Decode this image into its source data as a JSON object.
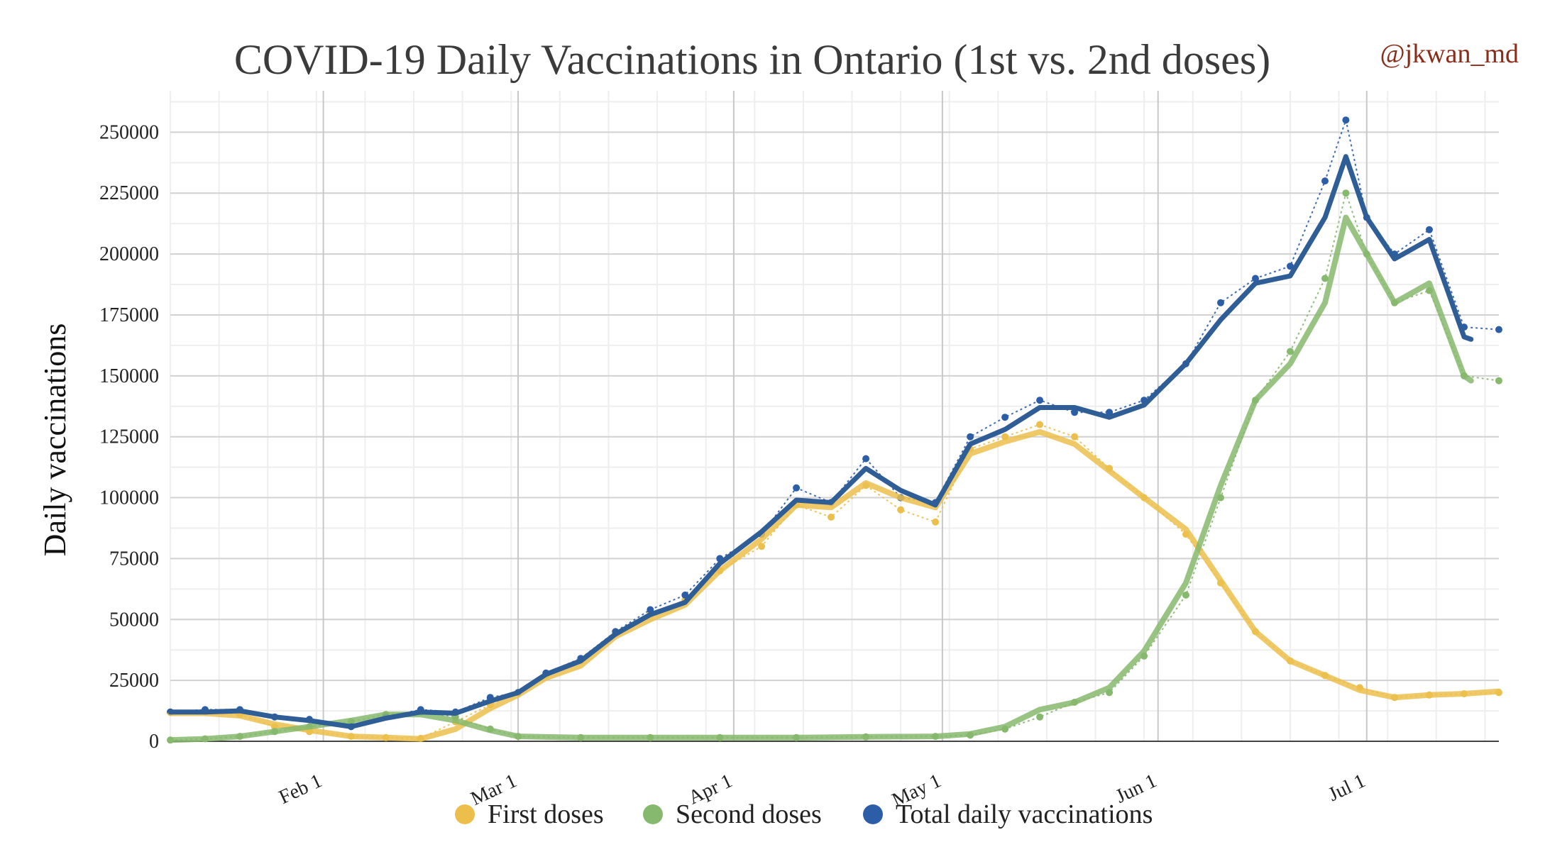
{
  "chart_data": {
    "type": "line",
    "title": "COVID-19 Daily Vaccinations in Ontario (1st vs. 2nd doses)",
    "credit": "@jkwan_md",
    "ylabel": "Daily vaccinations",
    "xlabel": "",
    "ylim": [
      0,
      267000
    ],
    "x_tick_labels": [
      "Feb 1",
      "Mar 1",
      "Apr 1",
      "May 1",
      "Jun 1",
      "Jul 1"
    ],
    "y_tick_labels": [
      "0",
      "25000",
      "50000",
      "75000",
      "100000",
      "125000",
      "150000",
      "175000",
      "200000",
      "225000",
      "250000"
    ],
    "grid": true,
    "legend_position": "bottom",
    "x_start": "2021-01-10",
    "x_end": "2021-07-20",
    "series": [
      {
        "name": "First doses",
        "color": "#ecbf4c",
        "daily": [
          [
            "2021-01-10",
            12000
          ],
          [
            "2021-01-15",
            12000
          ],
          [
            "2021-01-20",
            11000
          ],
          [
            "2021-01-25",
            6000
          ],
          [
            "2021-01-30",
            4000
          ],
          [
            "2021-02-05",
            2000
          ],
          [
            "2021-02-10",
            1500
          ],
          [
            "2021-02-15",
            1200
          ],
          [
            "2021-02-20",
            8000
          ],
          [
            "2021-02-25",
            15000
          ],
          [
            "2021-03-01",
            20000
          ],
          [
            "2021-03-05",
            27000
          ],
          [
            "2021-03-10",
            33000
          ],
          [
            "2021-03-15",
            45000
          ],
          [
            "2021-03-20",
            52000
          ],
          [
            "2021-03-25",
            58000
          ],
          [
            "2021-03-30",
            70000
          ],
          [
            "2021-04-05",
            80000
          ],
          [
            "2021-04-10",
            97000
          ],
          [
            "2021-04-15",
            92000
          ],
          [
            "2021-04-20",
            105000
          ],
          [
            "2021-04-25",
            95000
          ],
          [
            "2021-04-30",
            90000
          ],
          [
            "2021-05-05",
            120000
          ],
          [
            "2021-05-10",
            125000
          ],
          [
            "2021-05-15",
            130000
          ],
          [
            "2021-05-20",
            125000
          ],
          [
            "2021-05-25",
            112000
          ],
          [
            "2021-05-30",
            100000
          ],
          [
            "2021-06-05",
            85000
          ],
          [
            "2021-06-10",
            65000
          ],
          [
            "2021-06-15",
            45000
          ],
          [
            "2021-06-20",
            33000
          ],
          [
            "2021-06-25",
            27000
          ],
          [
            "2021-06-30",
            22000
          ],
          [
            "2021-07-05",
            18000
          ],
          [
            "2021-07-10",
            19000
          ],
          [
            "2021-07-15",
            19500
          ],
          [
            "2021-07-20",
            20000
          ]
        ],
        "smoothed": [
          [
            "2021-01-10",
            11500
          ],
          [
            "2021-01-15",
            11500
          ],
          [
            "2021-01-20",
            10500
          ],
          [
            "2021-01-25",
            7000
          ],
          [
            "2021-01-30",
            4500
          ],
          [
            "2021-02-05",
            2000
          ],
          [
            "2021-02-10",
            1500
          ],
          [
            "2021-02-15",
            1000
          ],
          [
            "2021-02-20",
            5000
          ],
          [
            "2021-02-25",
            13500
          ],
          [
            "2021-03-01",
            19000
          ],
          [
            "2021-03-05",
            26000
          ],
          [
            "2021-03-10",
            31000
          ],
          [
            "2021-03-15",
            43000
          ],
          [
            "2021-03-20",
            50000
          ],
          [
            "2021-03-25",
            56000
          ],
          [
            "2021-03-30",
            70000
          ],
          [
            "2021-04-05",
            83000
          ],
          [
            "2021-04-10",
            97000
          ],
          [
            "2021-04-15",
            96000
          ],
          [
            "2021-04-20",
            106000
          ],
          [
            "2021-04-25",
            100000
          ],
          [
            "2021-04-30",
            96000
          ],
          [
            "2021-05-05",
            118000
          ],
          [
            "2021-05-10",
            123000
          ],
          [
            "2021-05-15",
            127000
          ],
          [
            "2021-05-20",
            122000
          ],
          [
            "2021-05-25",
            111000
          ],
          [
            "2021-05-30",
            100000
          ],
          [
            "2021-06-05",
            87000
          ],
          [
            "2021-06-10",
            66000
          ],
          [
            "2021-06-15",
            45000
          ],
          [
            "2021-06-20",
            33000
          ],
          [
            "2021-06-25",
            27000
          ],
          [
            "2021-06-30",
            21000
          ],
          [
            "2021-07-05",
            18000
          ],
          [
            "2021-07-10",
            19000
          ],
          [
            "2021-07-15",
            19500
          ],
          [
            "2021-07-20",
            20500
          ]
        ]
      },
      {
        "name": "Second doses",
        "color": "#86b86d",
        "daily": [
          [
            "2021-01-10",
            500
          ],
          [
            "2021-01-15",
            1000
          ],
          [
            "2021-01-20",
            2000
          ],
          [
            "2021-01-25",
            4000
          ],
          [
            "2021-01-30",
            6000
          ],
          [
            "2021-02-05",
            8000
          ],
          [
            "2021-02-10",
            11000
          ],
          [
            "2021-02-15",
            12000
          ],
          [
            "2021-02-20",
            10000
          ],
          [
            "2021-02-25",
            5000
          ],
          [
            "2021-03-01",
            2000
          ],
          [
            "2021-03-10",
            1500
          ],
          [
            "2021-03-20",
            1500
          ],
          [
            "2021-03-30",
            1500
          ],
          [
            "2021-04-10",
            1500
          ],
          [
            "2021-04-20",
            1800
          ],
          [
            "2021-04-30",
            2000
          ],
          [
            "2021-05-05",
            2500
          ],
          [
            "2021-05-10",
            5000
          ],
          [
            "2021-05-15",
            10000
          ],
          [
            "2021-05-20",
            16000
          ],
          [
            "2021-05-25",
            20000
          ],
          [
            "2021-05-30",
            35000
          ],
          [
            "2021-06-05",
            60000
          ],
          [
            "2021-06-10",
            100000
          ],
          [
            "2021-06-15",
            140000
          ],
          [
            "2021-06-20",
            160000
          ],
          [
            "2021-06-25",
            190000
          ],
          [
            "2021-06-28",
            225000
          ],
          [
            "2021-07-01",
            200000
          ],
          [
            "2021-07-05",
            180000
          ],
          [
            "2021-07-10",
            185000
          ],
          [
            "2021-07-15",
            150000
          ],
          [
            "2021-07-20",
            148000
          ]
        ],
        "smoothed": [
          [
            "2021-01-10",
            500
          ],
          [
            "2021-01-15",
            1000
          ],
          [
            "2021-01-20",
            2000
          ],
          [
            "2021-01-25",
            4000
          ],
          [
            "2021-01-30",
            6000
          ],
          [
            "2021-02-05",
            8500
          ],
          [
            "2021-02-10",
            11000
          ],
          [
            "2021-02-15",
            11000
          ],
          [
            "2021-02-20",
            8500
          ],
          [
            "2021-02-25",
            4500
          ],
          [
            "2021-03-01",
            2000
          ],
          [
            "2021-03-10",
            1500
          ],
          [
            "2021-03-20",
            1500
          ],
          [
            "2021-03-30",
            1500
          ],
          [
            "2021-04-10",
            1500
          ],
          [
            "2021-04-20",
            1800
          ],
          [
            "2021-04-30",
            2000
          ],
          [
            "2021-05-05",
            3000
          ],
          [
            "2021-05-10",
            6000
          ],
          [
            "2021-05-15",
            13000
          ],
          [
            "2021-05-20",
            16000
          ],
          [
            "2021-05-25",
            22000
          ],
          [
            "2021-05-30",
            37000
          ],
          [
            "2021-06-05",
            65000
          ],
          [
            "2021-06-10",
            105000
          ],
          [
            "2021-06-15",
            140000
          ],
          [
            "2021-06-20",
            155000
          ],
          [
            "2021-06-25",
            180000
          ],
          [
            "2021-06-28",
            215000
          ],
          [
            "2021-07-01",
            200000
          ],
          [
            "2021-07-05",
            180000
          ],
          [
            "2021-07-10",
            188000
          ],
          [
            "2021-07-15",
            150000
          ],
          [
            "2021-07-16",
            148000
          ]
        ]
      },
      {
        "name": "Total daily vaccinations",
        "color": "#2c5ea8",
        "daily": [
          [
            "2021-01-10",
            12000
          ],
          [
            "2021-01-15",
            13000
          ],
          [
            "2021-01-20",
            13000
          ],
          [
            "2021-01-25",
            10000
          ],
          [
            "2021-01-30",
            9000
          ],
          [
            "2021-02-05",
            6000
          ],
          [
            "2021-02-10",
            10000
          ],
          [
            "2021-02-15",
            13000
          ],
          [
            "2021-02-20",
            12000
          ],
          [
            "2021-02-25",
            18000
          ],
          [
            "2021-03-01",
            20000
          ],
          [
            "2021-03-05",
            28000
          ],
          [
            "2021-03-10",
            34000
          ],
          [
            "2021-03-15",
            45000
          ],
          [
            "2021-03-20",
            54000
          ],
          [
            "2021-03-25",
            60000
          ],
          [
            "2021-03-30",
            75000
          ],
          [
            "2021-04-05",
            85000
          ],
          [
            "2021-04-10",
            104000
          ],
          [
            "2021-04-15",
            98000
          ],
          [
            "2021-04-20",
            116000
          ],
          [
            "2021-04-25",
            100000
          ],
          [
            "2021-04-30",
            98000
          ],
          [
            "2021-05-05",
            125000
          ],
          [
            "2021-05-10",
            133000
          ],
          [
            "2021-05-15",
            140000
          ],
          [
            "2021-05-20",
            135000
          ],
          [
            "2021-05-25",
            135000
          ],
          [
            "2021-05-30",
            140000
          ],
          [
            "2021-06-05",
            155000
          ],
          [
            "2021-06-10",
            180000
          ],
          [
            "2021-06-15",
            190000
          ],
          [
            "2021-06-20",
            195000
          ],
          [
            "2021-06-25",
            230000
          ],
          [
            "2021-06-28",
            255000
          ],
          [
            "2021-07-01",
            215000
          ],
          [
            "2021-07-05",
            200000
          ],
          [
            "2021-07-10",
            210000
          ],
          [
            "2021-07-15",
            170000
          ],
          [
            "2021-07-20",
            169000
          ]
        ],
        "smoothed": [
          [
            "2021-01-10",
            12000
          ],
          [
            "2021-01-15",
            12000
          ],
          [
            "2021-01-20",
            12500
          ],
          [
            "2021-01-25",
            10000
          ],
          [
            "2021-01-30",
            8500
          ],
          [
            "2021-02-05",
            6000
          ],
          [
            "2021-02-10",
            9500
          ],
          [
            "2021-02-15",
            12000
          ],
          [
            "2021-02-20",
            11500
          ],
          [
            "2021-02-25",
            16500
          ],
          [
            "2021-03-01",
            20000
          ],
          [
            "2021-03-05",
            27500
          ],
          [
            "2021-03-10",
            33000
          ],
          [
            "2021-03-15",
            44000
          ],
          [
            "2021-03-20",
            52000
          ],
          [
            "2021-03-25",
            57000
          ],
          [
            "2021-03-30",
            73000
          ],
          [
            "2021-04-05",
            86000
          ],
          [
            "2021-04-10",
            99000
          ],
          [
            "2021-04-15",
            98000
          ],
          [
            "2021-04-20",
            112000
          ],
          [
            "2021-04-25",
            103000
          ],
          [
            "2021-04-30",
            97000
          ],
          [
            "2021-05-05",
            122000
          ],
          [
            "2021-05-10",
            128000
          ],
          [
            "2021-05-15",
            137000
          ],
          [
            "2021-05-20",
            137000
          ],
          [
            "2021-05-25",
            133000
          ],
          [
            "2021-05-30",
            138000
          ],
          [
            "2021-06-05",
            155000
          ],
          [
            "2021-06-10",
            173000
          ],
          [
            "2021-06-15",
            188000
          ],
          [
            "2021-06-20",
            191000
          ],
          [
            "2021-06-25",
            215000
          ],
          [
            "2021-06-28",
            240000
          ],
          [
            "2021-07-01",
            215000
          ],
          [
            "2021-07-05",
            198000
          ],
          [
            "2021-07-10",
            206000
          ],
          [
            "2021-07-15",
            166000
          ],
          [
            "2021-07-16",
            165000
          ]
        ]
      }
    ]
  }
}
